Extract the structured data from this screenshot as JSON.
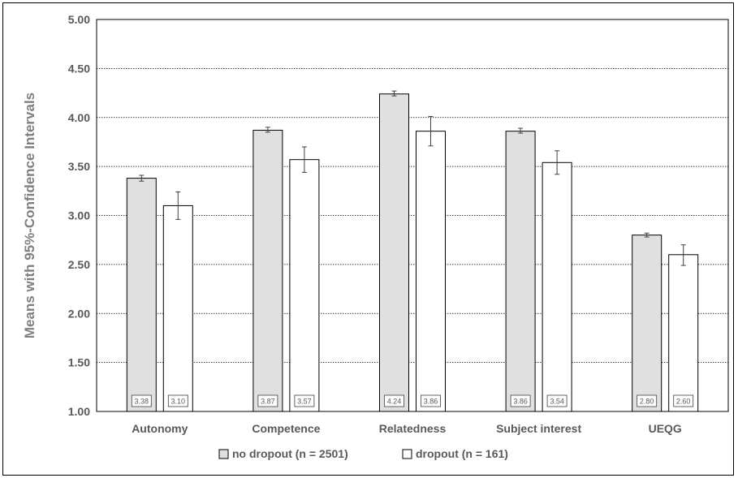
{
  "chart_data": {
    "type": "bar",
    "ylabel": "Means with 95%-Confidence Intervals",
    "xlabel": "",
    "ylim": [
      1.0,
      5.0
    ],
    "yticks": [
      "1.00",
      "1.50",
      "2.00",
      "2.50",
      "3.00",
      "3.50",
      "4.00",
      "4.50",
      "5.00"
    ],
    "grid": true,
    "legend_position": "bottom",
    "categories": [
      "Autonomy",
      "Competence",
      "Relatedness",
      "Subject interest",
      "UEQG"
    ],
    "series": [
      {
        "name": "no dropout (n = 2501)",
        "color": "#e0e0e0",
        "values": [
          3.38,
          3.87,
          4.24,
          3.86,
          2.8
        ],
        "labels": [
          "3.38",
          "3.87",
          "4.24",
          "3.86",
          "2.80"
        ],
        "ci_low": [
          3.35,
          3.85,
          4.22,
          3.84,
          2.78
        ],
        "ci_high": [
          3.41,
          3.9,
          4.27,
          3.89,
          2.82
        ]
      },
      {
        "name": "dropout (n = 161)",
        "color": "#ffffff",
        "values": [
          3.1,
          3.57,
          3.86,
          3.54,
          2.6
        ],
        "labels": [
          "3.10",
          "3.57",
          "3.86",
          "3.54",
          "2.60"
        ],
        "ci_low": [
          2.96,
          3.44,
          3.71,
          3.42,
          2.49
        ],
        "ci_high": [
          3.24,
          3.7,
          4.01,
          3.66,
          2.7
        ]
      }
    ]
  }
}
